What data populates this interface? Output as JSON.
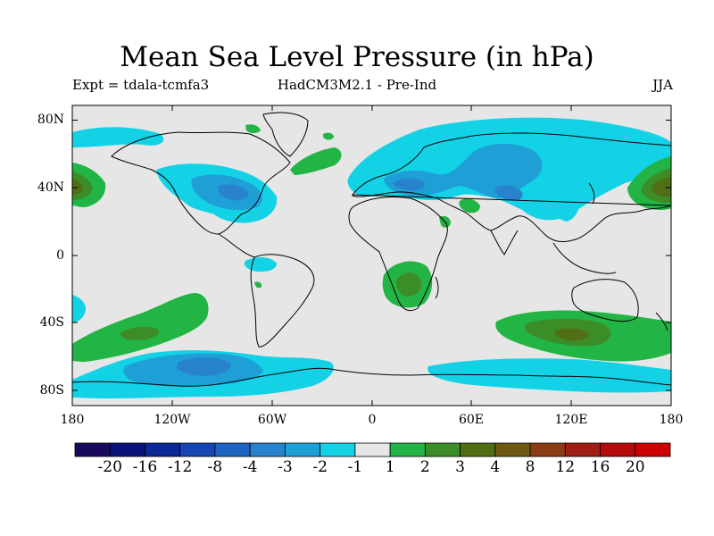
{
  "title": "Mean Sea Level Pressure (in hPa)",
  "experiment_label": "Expt = tdala-tcmfa3",
  "model_label": "HadCM3M2.1 - Pre-Ind",
  "season_label": "JJA",
  "lat_ticks": [
    "80N",
    "40N",
    "0",
    "40S",
    "80S"
  ],
  "lon_ticks": [
    "180",
    "120W",
    "60W",
    "0",
    "60E",
    "120E",
    "180"
  ],
  "colorbar": {
    "colors": [
      "#1a0a5e",
      "#0a1478",
      "#0a2896",
      "#1446b4",
      "#1e64c3",
      "#2882cd",
      "#1ea0d7",
      "#14d2e6",
      "#e6e6e6",
      "#23b446",
      "#3c8c28",
      "#506e14",
      "#6e5a14",
      "#8c3c14",
      "#a01e14",
      "#b40a0a",
      "#cd0000"
    ],
    "labels": [
      "-20",
      "-16",
      "-12",
      "-8",
      "-4",
      "-3",
      "-2",
      "-1",
      "1",
      "2",
      "3",
      "4",
      "8",
      "12",
      "16",
      "20"
    ]
  },
  "colors": {
    "neutral": "#e6e6e6",
    "neg_light": "#14d2e6",
    "neg_mid": "#1ea0d7",
    "neg_dark": "#2882cd",
    "pos_light": "#23b446",
    "pos_mid": "#3c8c28",
    "pos_dark": "#506e14",
    "coast": "#000000"
  }
}
